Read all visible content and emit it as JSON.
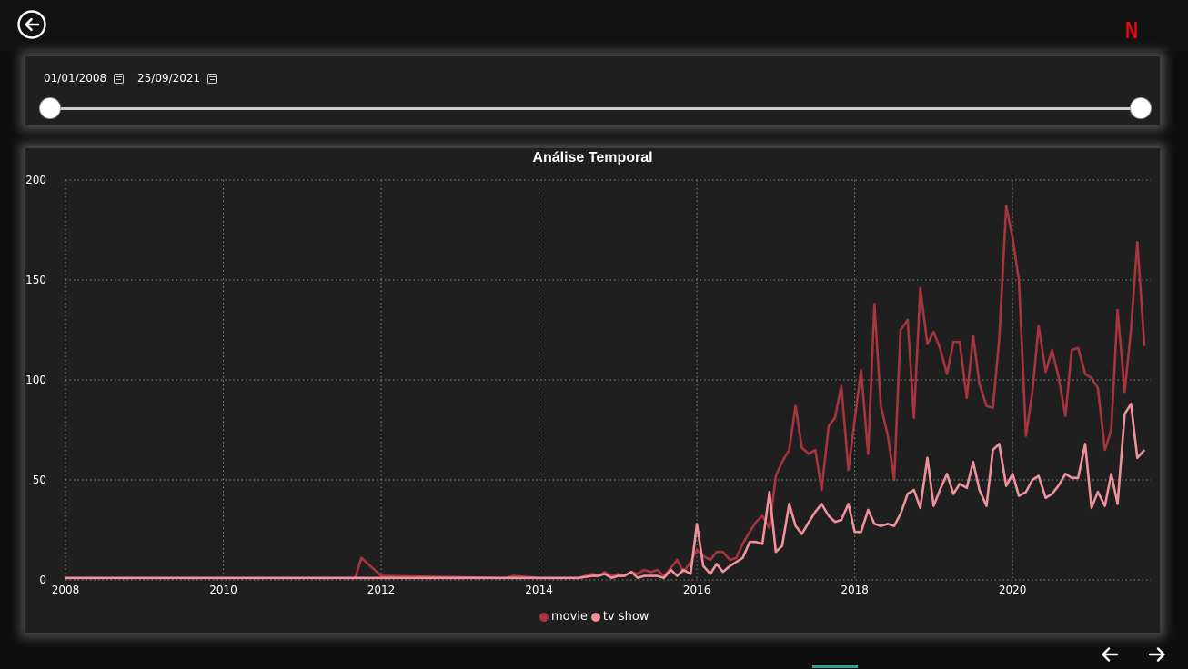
{
  "header": {
    "back_icon": "arrow-left-circle-icon",
    "logo_text": "N",
    "logo_color": "#e50914"
  },
  "slicer": {
    "start_date": "01/01/2008",
    "end_date": "25/09/2021",
    "calendar_icon": "calendar-icon"
  },
  "chart_data": {
    "type": "line",
    "title": "Análise Temporal",
    "xlabel": "",
    "ylabel": "",
    "xlim": [
      2008.0,
      2021.75
    ],
    "ylim": [
      0,
      200
    ],
    "x_ticks": [
      2008,
      2010,
      2012,
      2014,
      2016,
      2018,
      2020
    ],
    "y_ticks": [
      0,
      50,
      100,
      150,
      200
    ],
    "grid": true,
    "legend_position": "bottom-center",
    "series": [
      {
        "name": "movie",
        "color": "#a8343f",
        "x": [
          2008.0,
          2011.67,
          2011.75,
          2012.0,
          2013.58,
          2013.67,
          2014.0,
          2014.5,
          2014.67,
          2014.75,
          2014.83,
          2014.92,
          2015.0,
          2015.08,
          2015.17,
          2015.25,
          2015.33,
          2015.42,
          2015.5,
          2015.58,
          2015.67,
          2015.75,
          2015.83,
          2015.92,
          2016.0,
          2016.08,
          2016.17,
          2016.25,
          2016.33,
          2016.42,
          2016.5,
          2016.58,
          2016.67,
          2016.75,
          2016.83,
          2016.92,
          2017.0,
          2017.08,
          2017.17,
          2017.25,
          2017.33,
          2017.42,
          2017.5,
          2017.58,
          2017.67,
          2017.75,
          2017.83,
          2017.92,
          2018.0,
          2018.08,
          2018.17,
          2018.25,
          2018.33,
          2018.42,
          2018.5,
          2018.58,
          2018.67,
          2018.75,
          2018.83,
          2018.92,
          2019.0,
          2019.08,
          2019.17,
          2019.25,
          2019.33,
          2019.42,
          2019.5,
          2019.58,
          2019.67,
          2019.75,
          2019.83,
          2019.92,
          2020.0,
          2020.08,
          2020.17,
          2020.25,
          2020.33,
          2020.42,
          2020.5,
          2020.58,
          2020.67,
          2020.75,
          2020.83,
          2020.92,
          2021.0,
          2021.08,
          2021.17,
          2021.25,
          2021.33,
          2021.42,
          2021.5,
          2021.58,
          2021.67
        ],
        "values": [
          1,
          1,
          11,
          2,
          1,
          2,
          1,
          1,
          3,
          2,
          4,
          2,
          3,
          2,
          4,
          3,
          5,
          4,
          5,
          2,
          6,
          10,
          4,
          9,
          15,
          12,
          10,
          14,
          14,
          10,
          11,
          18,
          24,
          29,
          32,
          26,
          52,
          59,
          65,
          87,
          66,
          63,
          65,
          45,
          77,
          81,
          97,
          55,
          80,
          105,
          63,
          138,
          87,
          72,
          50,
          125,
          130,
          81,
          146,
          118,
          124,
          116,
          103,
          119,
          119,
          91,
          122,
          98,
          87,
          86,
          120,
          187,
          171,
          150,
          72,
          94,
          127,
          104,
          115,
          102,
          82,
          115,
          116,
          103,
          101,
          96,
          65,
          75,
          135,
          94,
          125,
          169,
          117
        ]
      },
      {
        "name": "tv show",
        "color": "#f0929c",
        "x": [
          2008.0,
          2013.58,
          2013.67,
          2014.0,
          2014.5,
          2014.67,
          2014.75,
          2014.83,
          2014.92,
          2015.0,
          2015.08,
          2015.17,
          2015.25,
          2015.33,
          2015.42,
          2015.5,
          2015.58,
          2015.67,
          2015.75,
          2015.83,
          2015.92,
          2016.0,
          2016.08,
          2016.17,
          2016.25,
          2016.33,
          2016.42,
          2016.5,
          2016.58,
          2016.67,
          2016.75,
          2016.83,
          2016.92,
          2017.0,
          2017.08,
          2017.17,
          2017.25,
          2017.33,
          2017.42,
          2017.5,
          2017.58,
          2017.67,
          2017.75,
          2017.83,
          2017.92,
          2018.0,
          2018.08,
          2018.17,
          2018.25,
          2018.33,
          2018.42,
          2018.5,
          2018.58,
          2018.67,
          2018.75,
          2018.83,
          2018.92,
          2019.0,
          2019.08,
          2019.17,
          2019.25,
          2019.33,
          2019.42,
          2019.5,
          2019.58,
          2019.67,
          2019.75,
          2019.83,
          2019.92,
          2020.0,
          2020.08,
          2020.17,
          2020.25,
          2020.33,
          2020.42,
          2020.5,
          2020.58,
          2020.67,
          2020.75,
          2020.83,
          2020.92,
          2021.0,
          2021.08,
          2021.17,
          2021.25,
          2021.33,
          2021.42,
          2021.5,
          2021.58,
          2021.67
        ],
        "values": [
          1,
          1,
          1,
          1,
          1,
          2,
          2,
          3,
          1,
          2,
          2,
          4,
          1,
          2,
          2,
          2,
          1,
          5,
          2,
          5,
          3,
          28,
          7,
          3,
          8,
          4,
          7,
          9,
          11,
          19,
          19,
          18,
          44,
          14,
          17,
          38,
          27,
          23,
          29,
          34,
          38,
          32,
          29,
          30,
          38,
          24,
          24,
          35,
          28,
          27,
          28,
          27,
          33,
          43,
          45,
          36,
          61,
          37,
          45,
          53,
          43,
          48,
          46,
          59,
          45,
          37,
          65,
          68,
          47,
          53,
          42,
          44,
          50,
          52,
          41,
          43,
          47,
          53,
          51,
          51,
          68,
          36,
          44,
          37,
          53,
          38,
          83,
          88,
          61,
          65
        ]
      }
    ]
  },
  "navigation": {
    "prev_icon": "arrow-left-icon",
    "next_icon": "arrow-right-icon"
  }
}
